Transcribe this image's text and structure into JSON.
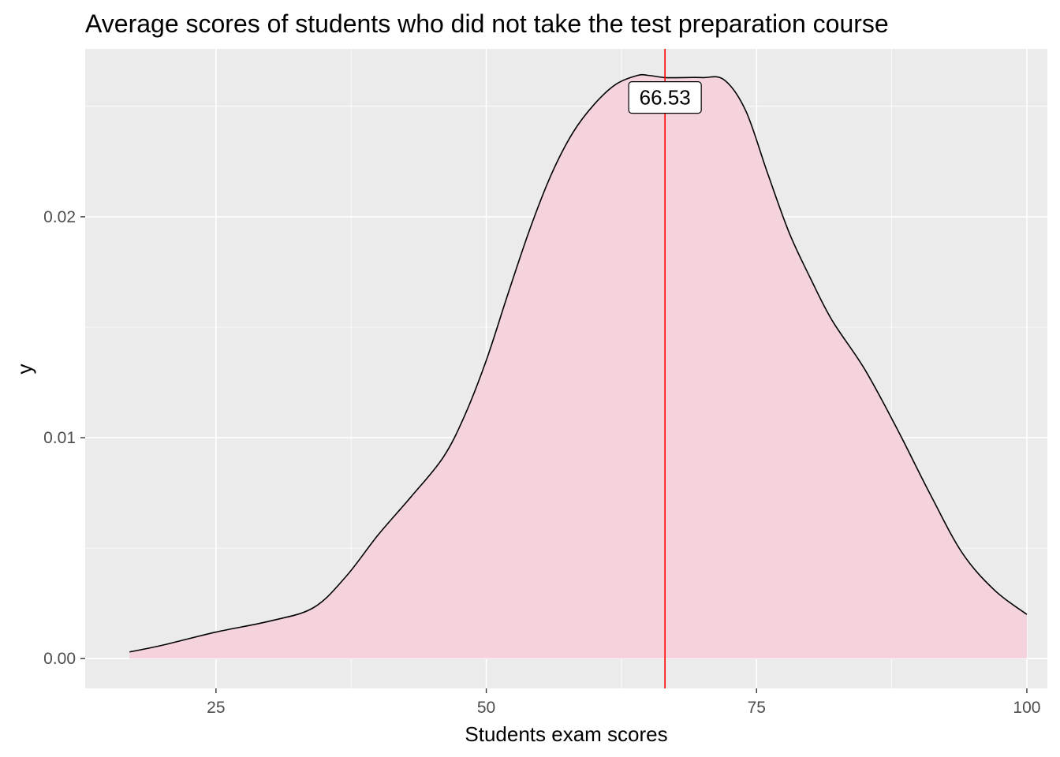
{
  "chart_data": {
    "type": "area",
    "title": "Average scores of students who did not take the test preparation course",
    "xlabel": "Students exam scores",
    "ylabel": "y",
    "xlim": [
      12.9,
      101.9
    ],
    "ylim": [
      -0.00135,
      0.0276
    ],
    "x_ticks": [
      25,
      50,
      75,
      100
    ],
    "x_tick_labels": [
      "25",
      "50",
      "75",
      "100"
    ],
    "y_ticks": [
      0.0,
      0.01,
      0.02
    ],
    "y_tick_labels": [
      "0.00",
      "0.01",
      "0.02"
    ],
    "grid": true,
    "background": "#ebebeb",
    "fill_color": "#f4d3dc",
    "line_color": "#000000",
    "series": [
      {
        "x": [
          17,
          20,
          25,
          30,
          34,
          37,
          40,
          43,
          46,
          48,
          50,
          52,
          54,
          56,
          58,
          60,
          62,
          64,
          65,
          66.53,
          68,
          70,
          72,
          74,
          76,
          78,
          80,
          82,
          85,
          88,
          91,
          94,
          97,
          100
        ],
        "y": [
          0.0003,
          0.0006,
          0.0012,
          0.0017,
          0.0023,
          0.0037,
          0.0056,
          0.0073,
          0.0091,
          0.011,
          0.0135,
          0.0165,
          0.0194,
          0.0219,
          0.0238,
          0.0251,
          0.026,
          0.0264,
          0.0264,
          0.0263,
          0.0263,
          0.0263,
          0.0262,
          0.0248,
          0.022,
          0.0193,
          0.0172,
          0.0153,
          0.0131,
          0.0104,
          0.0075,
          0.0048,
          0.0031,
          0.002
        ]
      }
    ],
    "vline": {
      "x": 66.53,
      "color": "#ff0000"
    },
    "annotation": {
      "text": "66.53",
      "x": 66.53,
      "y": 0.0254
    }
  }
}
